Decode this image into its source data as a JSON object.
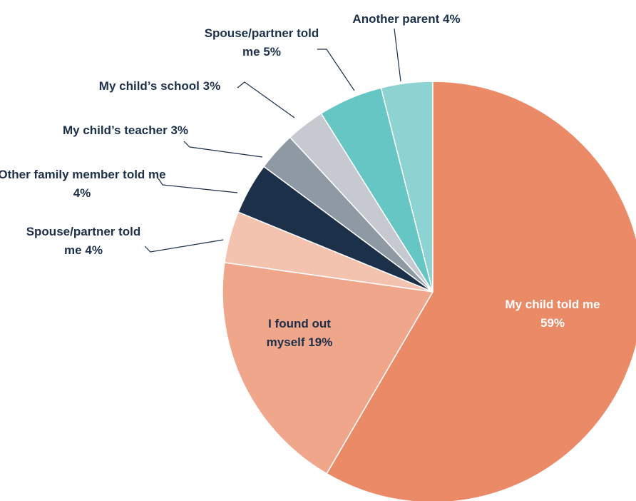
{
  "chart_data": {
    "type": "pie",
    "categories": [
      "My child told me",
      "I found out myself",
      "Spouse/partner told me",
      "Other family member told me",
      "My child’s teacher",
      "My child’s school",
      "Spouse/partner told me",
      "Another parent"
    ],
    "values": [
      59,
      19,
      4,
      4,
      3,
      3,
      5,
      4
    ],
    "value_labels": [
      "59%",
      "19%",
      "4%",
      "4%",
      "3%",
      "3%",
      "5%",
      "4%"
    ],
    "colors": [
      "#eb8a67",
      "#f0a68a",
      "#f4c3b0",
      "#1c3049",
      "#8e99a3",
      "#c6cad0",
      "#66c6c4",
      "#8dd3d2"
    ]
  }
}
